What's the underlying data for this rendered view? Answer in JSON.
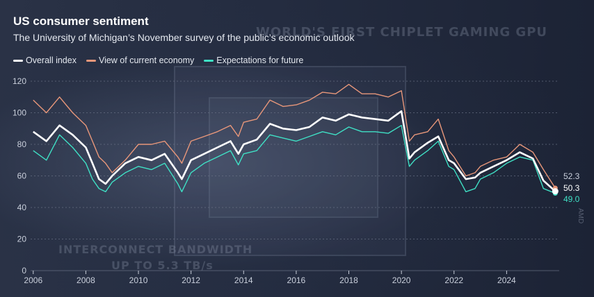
{
  "title": "US consumer sentiment",
  "subtitle": "The University of Michigan’s November survey of the public’s economic outlook",
  "background_text": {
    "headline": "WORLD'S FIRST CHIPLET GAMING GPU",
    "line1": "INTERCONNECT BANDWIDTH",
    "line2": "UP TO 5.3 TB/s",
    "side_mark": "AMD"
  },
  "colors": {
    "overall": "#ffffff",
    "current": "#e8977a",
    "expectations": "#3fe0c5",
    "grid": "#6a7286",
    "axis_text": "#c9cfdb"
  },
  "chart_data": {
    "type": "line",
    "title": "US consumer sentiment",
    "subtitle": "The University of Michigan’s November survey of the public’s economic outlook",
    "xlabel": "",
    "ylabel": "",
    "xlim": [
      2005.9,
      2026.0
    ],
    "ylim": [
      0,
      120
    ],
    "yticks": [
      0,
      20,
      40,
      60,
      80,
      100,
      120
    ],
    "xticks": [
      "2006",
      "2008",
      "2010",
      "2012",
      "2014",
      "2016",
      "2018",
      "2020",
      "2022",
      "2024"
    ],
    "grid": true,
    "legend_position": "top-left",
    "x": [
      2006.0,
      2006.5,
      2007.0,
      2007.5,
      2008.0,
      2008.25,
      2008.5,
      2008.75,
      2009.0,
      2009.5,
      2010.0,
      2010.5,
      2011.0,
      2011.5,
      2011.65,
      2012.0,
      2012.5,
      2013.0,
      2013.5,
      2013.8,
      2014.0,
      2014.5,
      2015.0,
      2015.5,
      2016.0,
      2016.5,
      2017.0,
      2017.5,
      2018.0,
      2018.5,
      2019.0,
      2019.5,
      2020.0,
      2020.3,
      2020.5,
      2021.0,
      2021.4,
      2021.8,
      2022.0,
      2022.45,
      2022.8,
      2023.0,
      2023.5,
      2024.0,
      2024.5,
      2025.0,
      2025.4,
      2025.85
    ],
    "series": [
      {
        "name": "Overall index",
        "values": [
          88,
          82,
          92,
          86,
          78,
          68,
          58,
          55,
          60,
          68,
          72,
          70,
          74,
          62,
          58,
          70,
          74,
          78,
          82,
          74,
          80,
          83,
          93,
          90,
          89,
          91,
          97,
          95,
          99,
          97,
          96,
          95,
          101,
          71,
          75,
          81,
          85,
          70,
          68,
          58,
          59,
          62,
          66,
          70,
          75,
          71,
          57,
          50.3
        ]
      },
      {
        "name": "View of current economy",
        "values": [
          108,
          100,
          110,
          100,
          92,
          82,
          72,
          68,
          62,
          70,
          80,
          80,
          82,
          72,
          68,
          82,
          85,
          88,
          92,
          85,
          94,
          96,
          108,
          104,
          105,
          108,
          113,
          112,
          118,
          112,
          112,
          110,
          114,
          82,
          86,
          88,
          96,
          76,
          72,
          60,
          62,
          66,
          70,
          72,
          80,
          75,
          64,
          52.3
        ]
      },
      {
        "name": "Expectations for future",
        "values": [
          76,
          70,
          86,
          78,
          68,
          58,
          52,
          50,
          56,
          62,
          66,
          64,
          68,
          55,
          50,
          62,
          68,
          72,
          76,
          67,
          74,
          76,
          86,
          84,
          82,
          85,
          88,
          86,
          91,
          88,
          88,
          87,
          92,
          66,
          70,
          76,
          82,
          66,
          64,
          50,
          52,
          58,
          62,
          68,
          72,
          70,
          52,
          49.0
        ]
      }
    ],
    "end_labels": [
      "52.3",
      "50.3",
      "49.0"
    ]
  }
}
